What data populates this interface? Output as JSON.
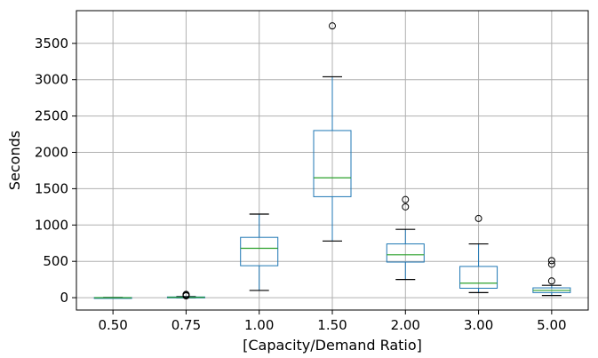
{
  "chart_data": {
    "type": "box",
    "title": "",
    "xlabel": "[Capacity/Demand Ratio]",
    "ylabel": "Seconds",
    "ylim": [
      -170,
      3950
    ],
    "yticks": [
      0,
      500,
      1000,
      1500,
      2000,
      2500,
      3000,
      3500
    ],
    "ytick_labels": [
      "0",
      "500",
      "1000",
      "1500",
      "2000",
      "2500",
      "3000",
      "3500"
    ],
    "grid": true,
    "categories": [
      "0.50",
      "0.75",
      "1.00",
      "1.50",
      "2.00",
      "3.00",
      "5.00"
    ],
    "boxes": [
      {
        "label": "0.50",
        "whisker_low": 0,
        "q1": 0,
        "median": 0,
        "q3": 2,
        "whisker_high": 3,
        "outliers": []
      },
      {
        "label": "0.75",
        "whisker_low": 0,
        "q1": 2,
        "median": 5,
        "q3": 10,
        "whisker_high": 15,
        "outliers": [
          25,
          35,
          45
        ]
      },
      {
        "label": "1.00",
        "whisker_low": 100,
        "q1": 440,
        "median": 680,
        "q3": 830,
        "whisker_high": 1150,
        "outliers": []
      },
      {
        "label": "1.50",
        "whisker_low": 780,
        "q1": 1390,
        "median": 1650,
        "q3": 2300,
        "whisker_high": 3040,
        "outliers": [
          3740
        ]
      },
      {
        "label": "2.00",
        "whisker_low": 250,
        "q1": 490,
        "median": 590,
        "q3": 740,
        "whisker_high": 940,
        "outliers": [
          1250,
          1350
        ]
      },
      {
        "label": "3.00",
        "whisker_low": 70,
        "q1": 130,
        "median": 200,
        "q3": 430,
        "whisker_high": 740,
        "outliers": [
          1090
        ]
      },
      {
        "label": "5.00",
        "whisker_low": 30,
        "q1": 70,
        "median": 100,
        "q3": 135,
        "whisker_high": 170,
        "outliers": [
          230,
          460,
          510
        ]
      }
    ],
    "colors": {
      "box": "#1f77b4",
      "median": "#2ca02c",
      "whisker": "#000000",
      "grid": "#b0b0b0",
      "frame": "#000000"
    }
  }
}
